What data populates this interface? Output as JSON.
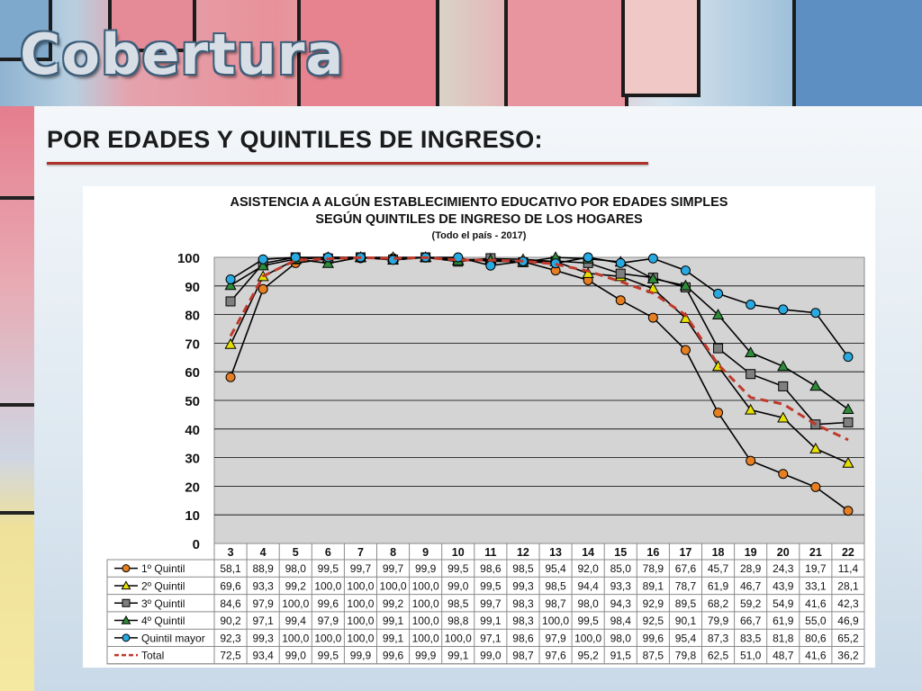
{
  "slide": {
    "title": "Cobertura",
    "heading": "POR EDADES Y QUINTILES DE INGRESO:"
  },
  "colors": {
    "q1": "#e67e22",
    "q2": "#e6e000",
    "q3": "#7f7f7f",
    "q4": "#2e8b3a",
    "q5": "#29a9e0",
    "total": "#c0392b",
    "rule": "#b0302a"
  },
  "chart_data": {
    "type": "line",
    "title": "ASISTENCIA A ALGÚN ESTABLECIMIENTO EDUCATIVO POR EDADES SIMPLES",
    "subtitle": "SEGÚN QUINTILES DE INGRESO DE LOS HOGARES",
    "note": "(Todo el país - 2017)",
    "x": [
      "3",
      "4",
      "5",
      "6",
      "7",
      "8",
      "9",
      "10",
      "11",
      "12",
      "13",
      "14",
      "15",
      "16",
      "17",
      "18",
      "19",
      "20",
      "21",
      "22"
    ],
    "yticks": [
      "0",
      "10",
      "20",
      "30",
      "40",
      "50",
      "60",
      "70",
      "80",
      "90",
      "100"
    ],
    "ylim": [
      0,
      100
    ],
    "grid": true,
    "legend": "data-table",
    "series": [
      {
        "name": "1º Quintil",
        "marker": "circle",
        "color": "#e67e22",
        "labels": [
          "58,1",
          "88,9",
          "98,0",
          "99,5",
          "99,7",
          "99,7",
          "99,9",
          "99,5",
          "98,6",
          "98,5",
          "95,4",
          "92,0",
          "85,0",
          "78,9",
          "67,6",
          "45,7",
          "28,9",
          "24,3",
          "19,7",
          "11,4"
        ],
        "values": [
          58.1,
          88.9,
          98.0,
          99.5,
          99.7,
          99.7,
          99.9,
          99.5,
          98.6,
          98.5,
          95.4,
          92.0,
          85.0,
          78.9,
          67.6,
          45.7,
          28.9,
          24.3,
          19.7,
          11.4
        ]
      },
      {
        "name": "2º Quintil",
        "marker": "triangle",
        "color": "#e6e000",
        "labels": [
          "69,6",
          "93,3",
          "99,2",
          "100,0",
          "100,0",
          "100,0",
          "100,0",
          "99,0",
          "99,5",
          "99,3",
          "98,5",
          "94,4",
          "93,3",
          "89,1",
          "78,7",
          "61,9",
          "46,7",
          "43,9",
          "33,1",
          "28,1"
        ],
        "values": [
          69.6,
          93.3,
          99.2,
          100.0,
          100.0,
          100.0,
          100.0,
          99.0,
          99.5,
          99.3,
          98.5,
          94.4,
          93.3,
          89.1,
          78.7,
          61.9,
          46.7,
          43.9,
          33.1,
          28.1
        ]
      },
      {
        "name": "3º Quintil",
        "marker": "square",
        "color": "#7f7f7f",
        "labels": [
          "84,6",
          "97,9",
          "100,0",
          "99,6",
          "100,0",
          "99,2",
          "100,0",
          "98,5",
          "99,7",
          "98,3",
          "98,7",
          "98,0",
          "94,3",
          "92,9",
          "89,5",
          "68,2",
          "59,2",
          "54,9",
          "41,6",
          "42,3"
        ],
        "values": [
          84.6,
          97.9,
          100.0,
          99.6,
          100.0,
          99.2,
          100.0,
          98.5,
          99.7,
          98.3,
          98.7,
          98.0,
          94.3,
          92.9,
          89.5,
          68.2,
          59.2,
          54.9,
          41.6,
          42.3
        ]
      },
      {
        "name": "4º Quintil",
        "marker": "triangle",
        "color": "#2e8b3a",
        "labels": [
          "90,2",
          "97,1",
          "99,4",
          "97,9",
          "100,0",
          "99,1",
          "100,0",
          "98,8",
          "99,1",
          "98,3",
          "100,0",
          "99,5",
          "98,4",
          "92,5",
          "90,1",
          "79,9",
          "66,7",
          "61,9",
          "55,0",
          "46,9"
        ],
        "values": [
          90.2,
          97.1,
          99.4,
          97.9,
          100.0,
          99.1,
          100.0,
          98.8,
          99.1,
          98.3,
          100.0,
          99.5,
          98.4,
          92.5,
          90.1,
          79.9,
          66.7,
          61.9,
          55.0,
          46.9
        ]
      },
      {
        "name": "Quintil mayor",
        "marker": "circle",
        "color": "#29a9e0",
        "labels": [
          "92,3",
          "99,3",
          "100,0",
          "100,0",
          "100,0",
          "99,1",
          "100,0",
          "100,0",
          "97,1",
          "98,6",
          "97,9",
          "100,0",
          "98,0",
          "99,6",
          "95,4",
          "87,3",
          "83,5",
          "81,8",
          "80,6",
          "65,2"
        ],
        "values": [
          92.3,
          99.3,
          100.0,
          100.0,
          100.0,
          99.1,
          100.0,
          100.0,
          97.1,
          98.6,
          97.9,
          100.0,
          98.0,
          99.6,
          95.4,
          87.3,
          83.5,
          81.8,
          80.6,
          65.2
        ]
      },
      {
        "name": "Total",
        "marker": "none",
        "dashed": true,
        "color": "#c0392b",
        "labels": [
          "72,5",
          "93,4",
          "99,0",
          "99,5",
          "99,9",
          "99,6",
          "99,9",
          "99,1",
          "99,0",
          "98,7",
          "97,6",
          "95,2",
          "91,5",
          "87,5",
          "79,8",
          "62,5",
          "51,0",
          "48,7",
          "41,6",
          "36,2"
        ],
        "values": [
          72.5,
          93.4,
          99.0,
          99.5,
          99.9,
          99.6,
          99.9,
          99.1,
          99.0,
          98.7,
          97.6,
          95.2,
          91.5,
          87.5,
          79.8,
          62.5,
          51.0,
          48.7,
          41.6,
          36.2
        ]
      }
    ]
  }
}
